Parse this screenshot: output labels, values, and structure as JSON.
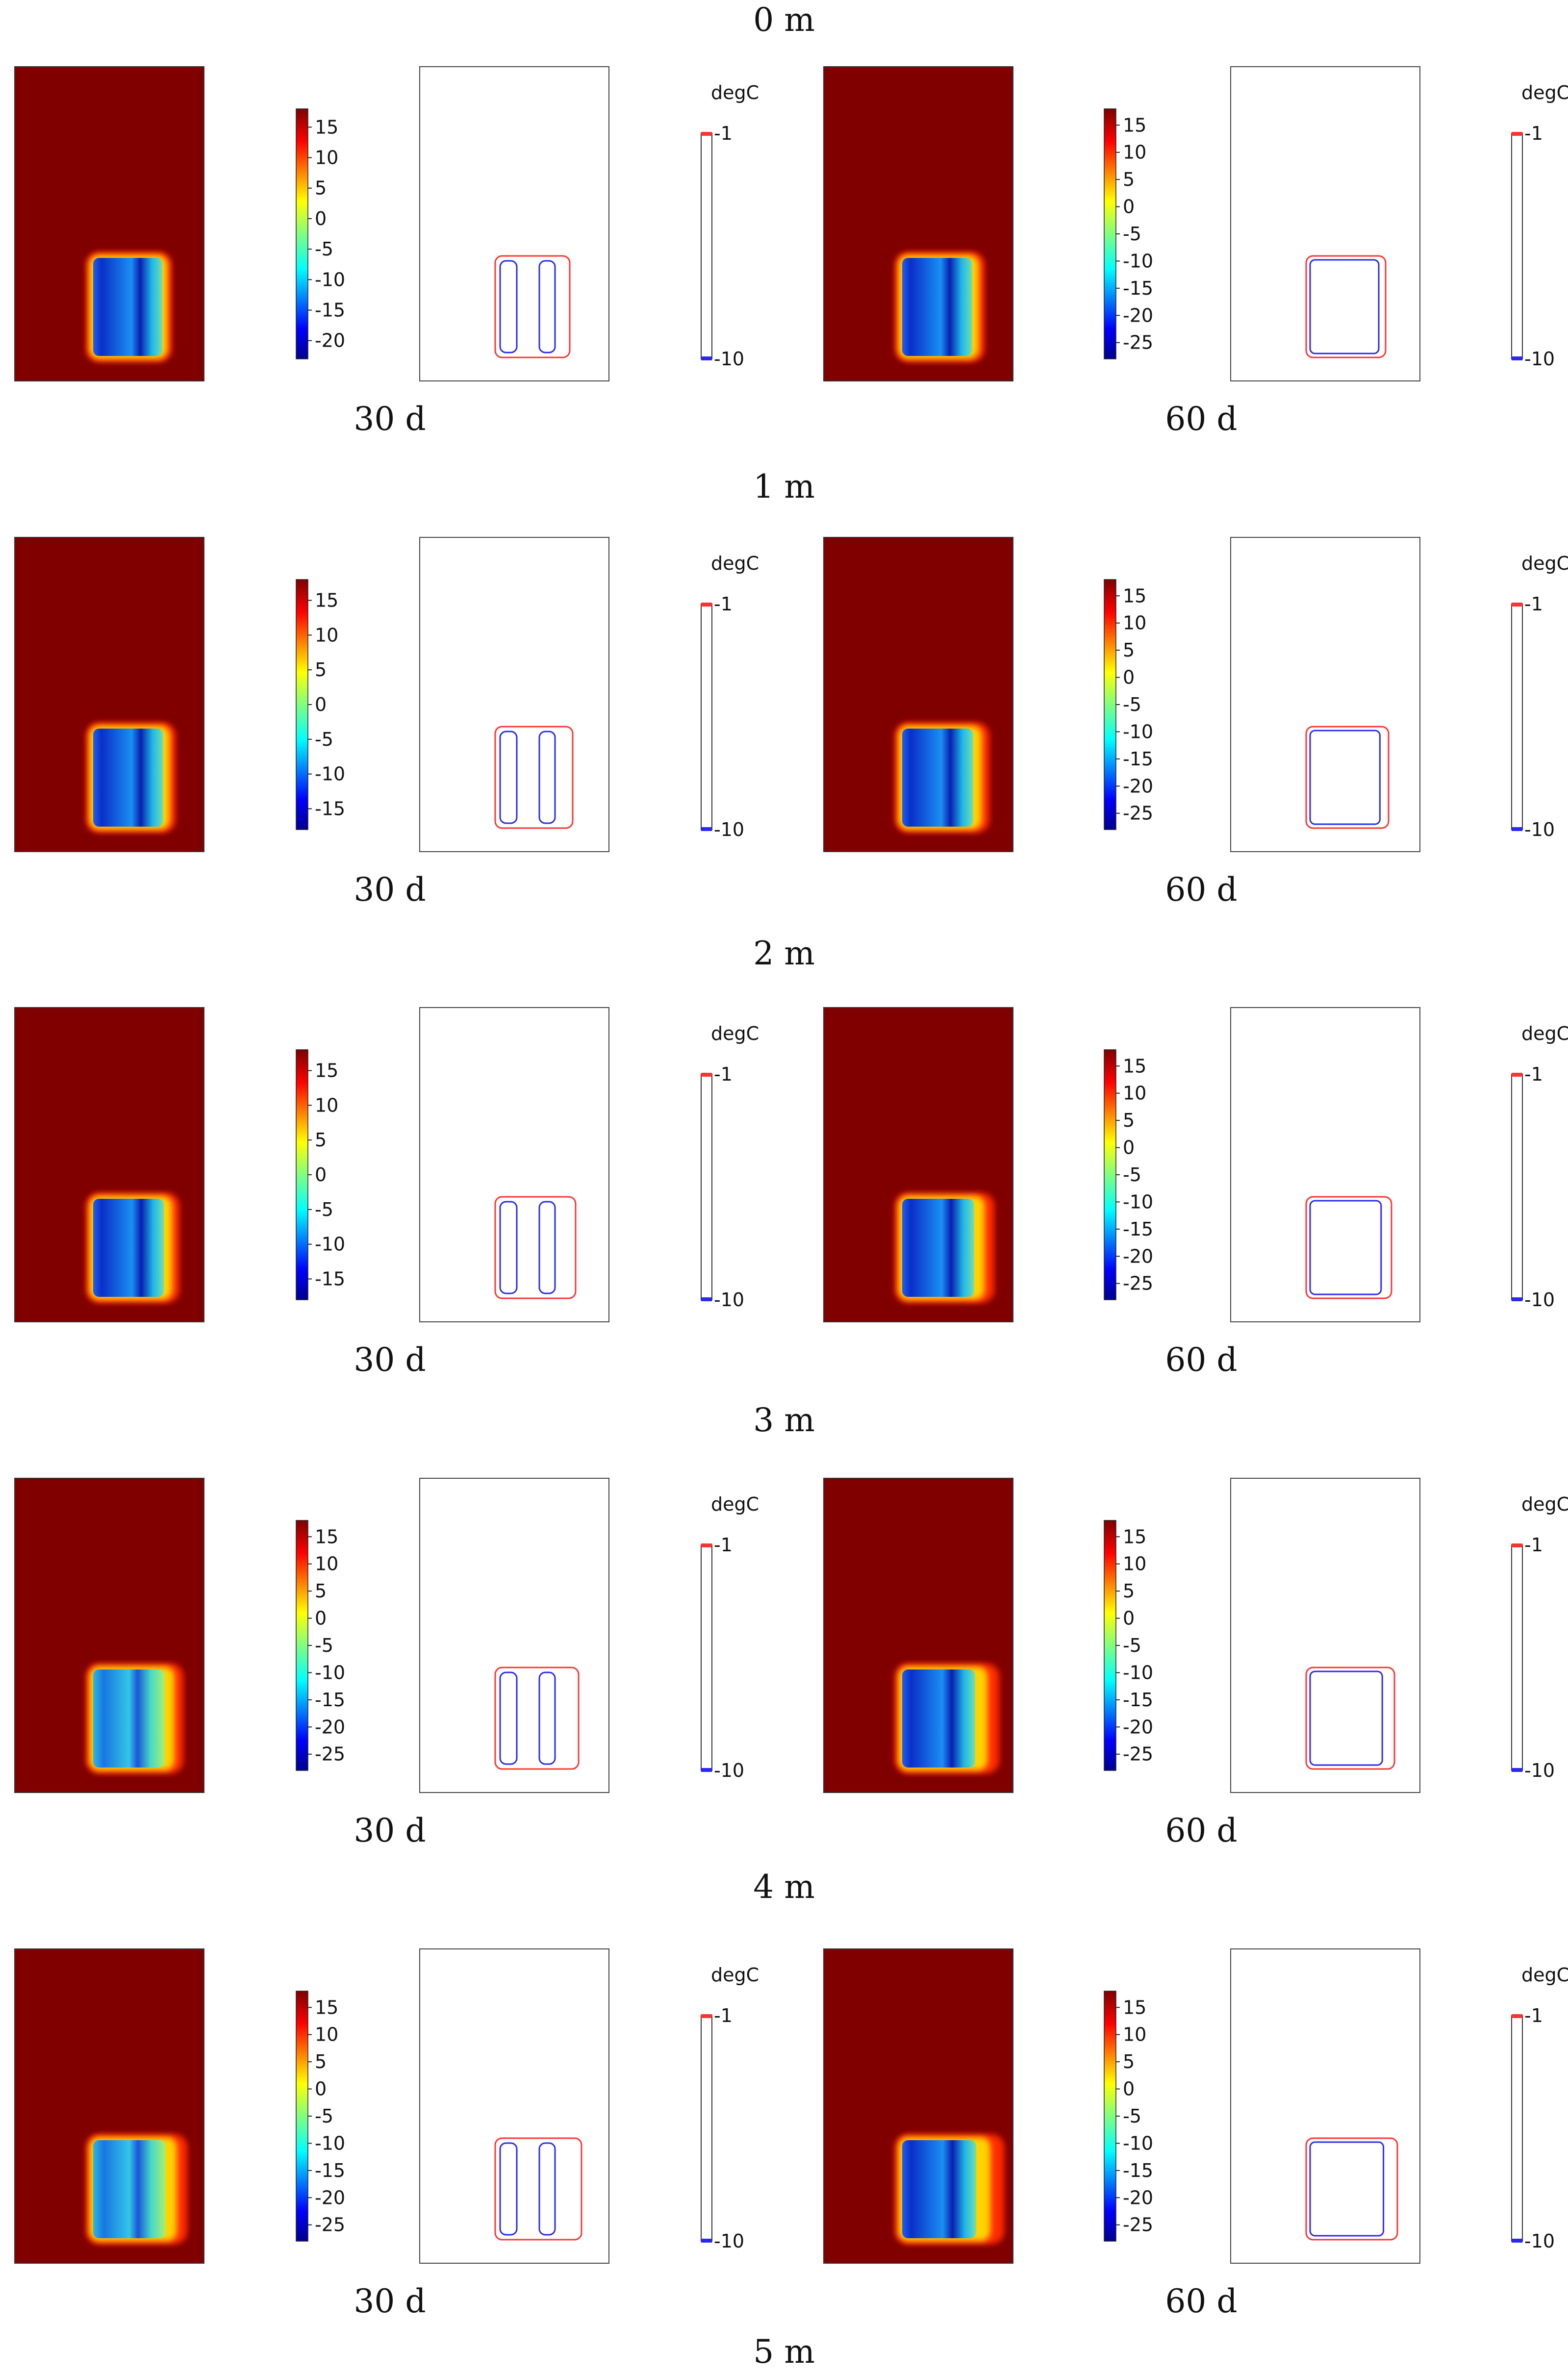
{
  "figure": {
    "section_titles": [
      "0 m",
      "1 m",
      "2 m",
      "3 m",
      "4 m",
      "5 m"
    ],
    "time_labels": [
      "30 d",
      "60 d"
    ],
    "contour_unit": "degC",
    "contour_levels": [
      -1,
      -10
    ],
    "contour_colors": {
      "-1": "#ff3333",
      "-10": "#2a2aee"
    },
    "background_color": "#800000",
    "rows": [
      {
        "left": {
          "time": "30 d",
          "colorbar_ticks": [
            15,
            10,
            5,
            0,
            -5,
            -10,
            -15,
            -20
          ]
        },
        "right": {
          "time": "60 d",
          "colorbar_ticks": [
            15,
            10,
            5,
            0,
            -5,
            -10,
            -15,
            -20,
            -25
          ]
        }
      },
      {
        "left": {
          "time": "30 d",
          "colorbar_ticks": [
            15,
            10,
            5,
            0,
            -5,
            -10,
            -15
          ]
        },
        "right": {
          "time": "60 d",
          "colorbar_ticks": [
            15,
            10,
            5,
            0,
            -5,
            -10,
            -15,
            -20,
            -25
          ]
        }
      },
      {
        "left": {
          "time": "30 d",
          "colorbar_ticks": [
            15,
            10,
            5,
            0,
            -5,
            -10,
            -15
          ]
        },
        "right": {
          "time": "60 d",
          "colorbar_ticks": [
            15,
            10,
            5,
            0,
            -5,
            -10,
            -15,
            -20,
            -25
          ]
        }
      },
      {
        "left": {
          "time": "30 d",
          "colorbar_ticks": [
            15,
            10,
            5,
            0,
            -5,
            -10,
            -15,
            -20,
            -25
          ]
        },
        "right": {
          "time": "60 d",
          "colorbar_ticks": [
            15,
            10,
            5,
            0,
            -5,
            -10,
            -15,
            -20,
            -25
          ]
        }
      },
      {
        "left": {
          "time": "30 d",
          "colorbar_ticks": [
            15,
            10,
            5,
            0,
            -5,
            -10,
            -15,
            -20,
            -25
          ]
        },
        "right": {
          "time": "60 d",
          "colorbar_ticks": [
            15,
            10,
            5,
            0,
            -5,
            -10,
            -15,
            -20,
            -25
          ]
        }
      }
    ]
  }
}
